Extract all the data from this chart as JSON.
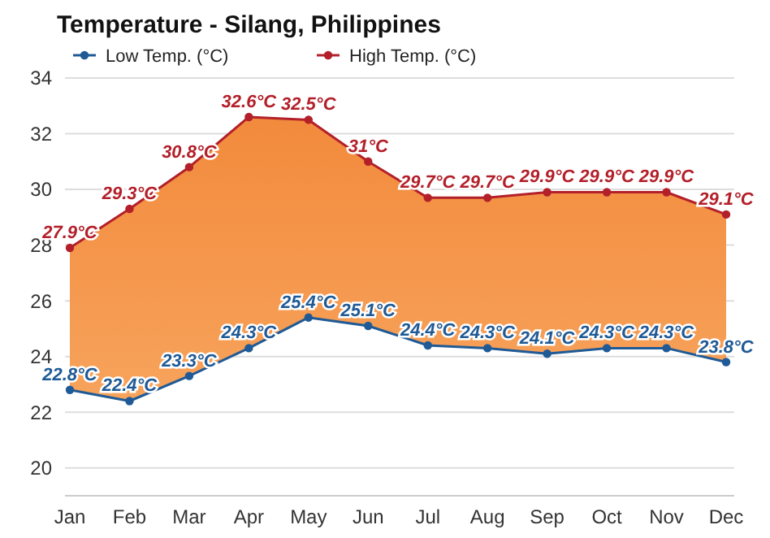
{
  "chart_data": {
    "type": "line",
    "title": "Temperature - Silang, Philippines",
    "categories": [
      "Jan",
      "Feb",
      "Mar",
      "Apr",
      "May",
      "Jun",
      "Jul",
      "Aug",
      "Sep",
      "Oct",
      "Nov",
      "Dec"
    ],
    "series": [
      {
        "name": "Low Temp. (°C)",
        "color": "#1f5a96",
        "values": [
          22.8,
          22.4,
          23.3,
          24.3,
          25.4,
          25.1,
          24.4,
          24.3,
          24.1,
          24.3,
          24.3,
          23.8
        ],
        "value_labels": [
          "22.8°C",
          "22.4°C",
          "23.3°C",
          "24.3°C",
          "25.4°C",
          "25.1°C",
          "24.4°C",
          "24.3°C",
          "24.1°C",
          "24.3°C",
          "24.3°C",
          "23.8°C"
        ]
      },
      {
        "name": "High Temp. (°C)",
        "type": "area",
        "color": "#b3202a",
        "values": [
          27.9,
          29.3,
          30.8,
          32.6,
          32.5,
          31,
          29.7,
          29.7,
          29.9,
          29.9,
          29.9,
          29.1
        ],
        "value_labels": [
          "27.9°C",
          "29.3°C",
          "30.8°C",
          "32.6°C",
          "32.5°C",
          "31°C",
          "29.7°C",
          "29.7°C",
          "29.9°C",
          "29.9°C",
          "29.9°C",
          "29.1°C"
        ]
      }
    ],
    "ylim": [
      19,
      34
    ],
    "yticks": [
      20,
      22,
      24,
      26,
      28,
      30,
      32,
      34
    ],
    "grid": "y",
    "legend": "top",
    "marker": "circle"
  }
}
